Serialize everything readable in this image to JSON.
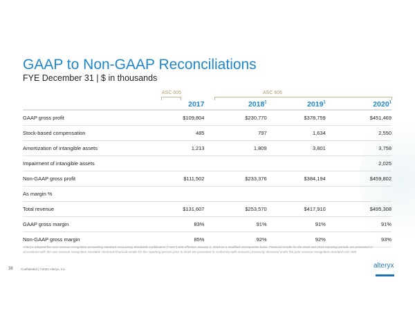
{
  "title": "GAAP to Non-GAAP Reconciliations",
  "subtitle": "FYE December 31 | $ in thousands",
  "asc_labels": [
    "ASC 605",
    "ASC 606"
  ],
  "columns": [
    {
      "year": "2017",
      "sup": ""
    },
    {
      "year": "2018",
      "sup": "1"
    },
    {
      "year": "2019",
      "sup": "1"
    },
    {
      "year": "2020",
      "sup": "1"
    }
  ],
  "rows": [
    {
      "label": "GAAP gross profit",
      "values": [
        "$109,804",
        "$230,770",
        "$378,759",
        "$451,469"
      ]
    },
    {
      "label": "Stock-based compensation",
      "values": [
        "485",
        "797",
        "1,634",
        "2,550"
      ]
    },
    {
      "label": "Amortization of intangible assets",
      "values": [
        "1,213",
        "1,809",
        "3,801",
        "3,758"
      ]
    },
    {
      "label": "Impairment of intangible assets",
      "values": [
        "",
        "",
        "",
        "2,025"
      ]
    },
    {
      "label": "Non-GAAP gross profit",
      "values": [
        "$111,502",
        "$233,376",
        "$384,194",
        "$459,802"
      ]
    },
    {
      "label": "As margin %",
      "values": [
        "",
        "",
        "",
        ""
      ]
    },
    {
      "label": "Total revenue",
      "values": [
        "$131,607",
        "$253,570",
        "$417,910",
        "$495,308"
      ]
    },
    {
      "label": "GAAP gross margin",
      "values": [
        "83%",
        "91%",
        "91%",
        "91%"
      ]
    },
    {
      "label": "Non-GAAP gross margin",
      "values": [
        "85%",
        "92%",
        "92%",
        "93%"
      ]
    }
  ],
  "footnote": "¹Alteryx adopted the new revenue recognition accounting standard Accounting Standards Codification (\"ASC\") 606 effective January 1, 2018 on a modified retrospective basis. Financial results for the 2018 and 2019 reporting periods are presented in accordance with the new revenue recognition standard. Historical financial results for the reporting periods prior to 2018 are presented in conformity with amounts previously disclosed under the prior revenue recognition standard ASC 605.",
  "page_number": "38",
  "confidential": "Confidential  |  ©2021 Alteryx, Inc.",
  "logo": "alteryx",
  "accent": "#1f86c8"
}
